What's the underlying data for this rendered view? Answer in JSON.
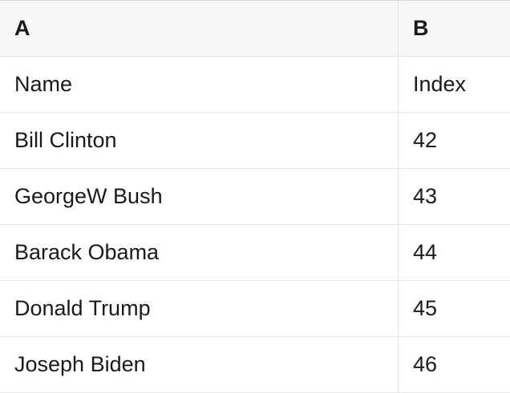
{
  "colors": {
    "header_bg": "#f7f7f7",
    "row_border": "#e4e4e4",
    "top_border": "#d9d9d9",
    "text": "#1a1a1a",
    "background": "#ffffff"
  },
  "table": {
    "column_headers": [
      "A",
      "B"
    ],
    "field_labels": {
      "a": "Name",
      "b": "Index"
    },
    "rows": [
      {
        "a": "Name",
        "b": "Index"
      },
      {
        "a": "Bill Clinton",
        "b": "42"
      },
      {
        "a": "GeorgeW Bush",
        "b": "43"
      },
      {
        "a": "Barack Obama",
        "b": "44"
      },
      {
        "a": "Donald Trump",
        "b": "45"
      },
      {
        "a": "Joseph Biden",
        "b": "46"
      }
    ]
  }
}
